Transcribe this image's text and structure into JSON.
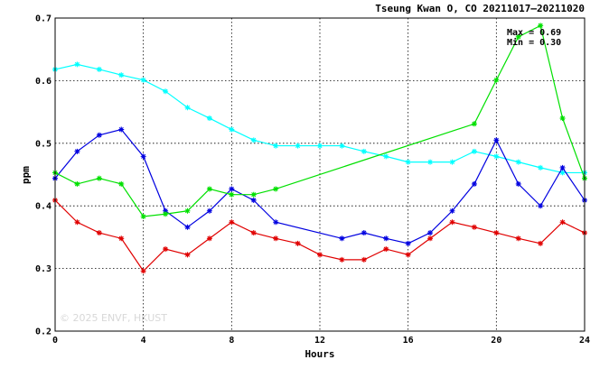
{
  "chart_data": {
    "type": "line",
    "title": "Tseung Kwan O, CO 20211017–20211020",
    "xlabel": "Hours",
    "ylabel": "ppm",
    "xlim": [
      0,
      24
    ],
    "ylim": [
      0.2,
      0.7
    ],
    "x_ticks": [
      0,
      4,
      8,
      12,
      16,
      20,
      24
    ],
    "y_ticks": [
      "0.2",
      "0.3",
      "0.4",
      "0.5",
      "0.6",
      "0.7"
    ],
    "grid": true,
    "annotations": {
      "max": "Max = 0.69",
      "min": "Min = 0.30"
    },
    "watermark": "© 2025  ENVF, HKUST",
    "series": [
      {
        "color": "#00ffff",
        "points": [
          [
            0,
            0.618
          ],
          [
            1,
            0.626
          ],
          [
            2,
            0.618
          ],
          [
            3,
            0.609
          ],
          [
            4,
            0.601
          ],
          [
            5,
            0.583
          ],
          [
            6,
            0.557
          ],
          [
            7,
            0.54
          ],
          [
            8,
            0.522
          ],
          [
            9,
            0.505
          ],
          [
            10,
            0.496
          ],
          [
            11,
            0.496
          ],
          [
            12,
            0.496
          ],
          [
            13,
            0.496
          ],
          [
            14,
            0.487
          ],
          [
            15,
            0.479
          ],
          [
            16,
            0.47
          ],
          [
            17,
            0.47
          ],
          [
            18,
            0.47
          ],
          [
            19,
            0.487
          ],
          [
            20,
            0.479
          ],
          [
            21,
            0.47
          ],
          [
            22,
            0.461
          ],
          [
            23,
            0.453
          ],
          [
            24,
            0.453
          ]
        ]
      },
      {
        "color": "#0000e0",
        "points": [
          [
            0,
            0.444
          ],
          [
            1,
            0.487
          ],
          [
            2,
            0.513
          ],
          [
            3,
            0.522
          ],
          [
            4,
            0.479
          ],
          [
            5,
            0.392
          ],
          [
            6,
            0.366
          ],
          [
            7,
            0.392
          ],
          [
            8,
            0.427
          ],
          [
            9,
            0.409
          ],
          [
            10,
            0.374
          ],
          [
            13,
            0.348
          ],
          [
            14,
            0.357
          ],
          [
            15,
            0.348
          ],
          [
            16,
            0.34
          ],
          [
            17,
            0.357
          ],
          [
            18,
            0.392
          ],
          [
            19,
            0.435
          ],
          [
            20,
            0.505
          ],
          [
            21,
            0.435
          ],
          [
            22,
            0.4
          ],
          [
            23,
            0.461
          ],
          [
            24,
            0.409
          ]
        ]
      },
      {
        "color": "#00e000",
        "points": [
          [
            0,
            0.453
          ],
          [
            1,
            0.435
          ],
          [
            2,
            0.444
          ],
          [
            3,
            0.435
          ],
          [
            4,
            0.383
          ],
          [
            5,
            0.387
          ],
          [
            6,
            0.392
          ],
          [
            7,
            0.427
          ],
          [
            8,
            0.418
          ],
          [
            9,
            0.418
          ],
          [
            10,
            0.427
          ],
          [
            19,
            0.531
          ],
          [
            20,
            0.601
          ],
          [
            21,
            0.67
          ],
          [
            22,
            0.688
          ],
          [
            23,
            0.54
          ],
          [
            24,
            0.444
          ]
        ]
      },
      {
        "color": "#e00000",
        "points": [
          [
            0,
            0.409
          ],
          [
            1,
            0.374
          ],
          [
            2,
            0.357
          ],
          [
            3,
            0.348
          ],
          [
            4,
            0.296
          ],
          [
            5,
            0.331
          ],
          [
            6,
            0.322
          ],
          [
            7,
            0.348
          ],
          [
            8,
            0.374
          ],
          [
            9,
            0.357
          ],
          [
            10,
            0.348
          ],
          [
            11,
            0.34
          ],
          [
            12,
            0.322
          ],
          [
            13,
            0.314
          ],
          [
            14,
            0.314
          ],
          [
            15,
            0.331
          ],
          [
            16,
            0.322
          ],
          [
            17,
            0.348
          ],
          [
            18,
            0.374
          ],
          [
            19,
            0.366
          ],
          [
            20,
            0.357
          ],
          [
            21,
            0.348
          ],
          [
            22,
            0.34
          ],
          [
            23,
            0.374
          ],
          [
            24,
            0.357
          ]
        ]
      }
    ]
  }
}
